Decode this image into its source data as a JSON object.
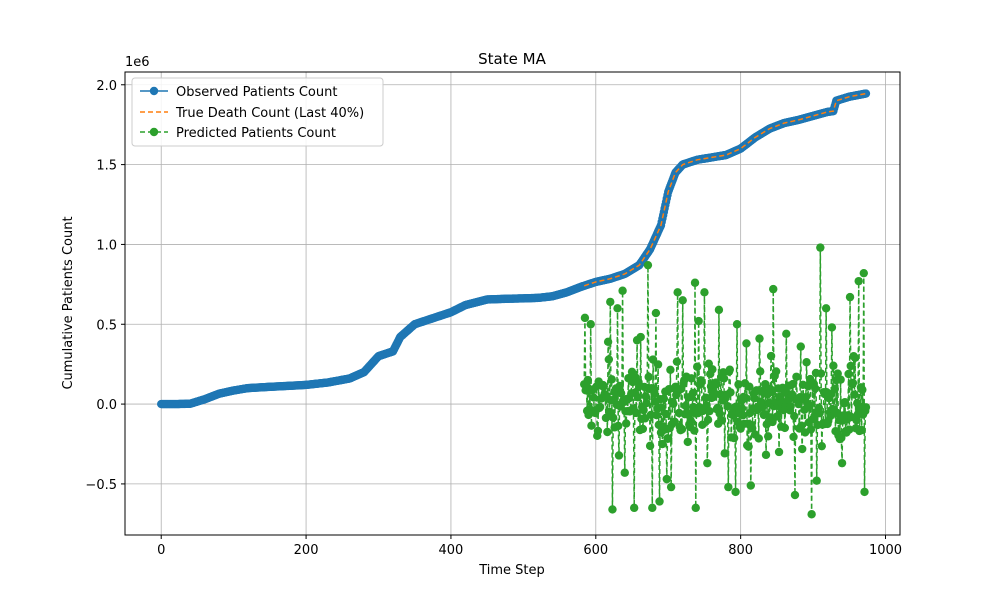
{
  "chart_data": {
    "type": "line",
    "title": "State MA",
    "xlabel": "Time Step",
    "ylabel": "Cumulative Patients Count",
    "y_scale_label": "1e6",
    "xlim": [
      -50,
      1020
    ],
    "ylim": [
      -0.82,
      2.08
    ],
    "x_ticks": [
      0,
      200,
      400,
      600,
      800,
      1000
    ],
    "x_tick_labels": [
      "0",
      "200",
      "400",
      "600",
      "800",
      "1000"
    ],
    "y_ticks": [
      -0.5,
      0.0,
      0.5,
      1.0,
      1.5,
      2.0
    ],
    "y_tick_labels": [
      "−0.5",
      "0.0",
      "0.5",
      "1.0",
      "1.5",
      "2.0"
    ],
    "grid": true,
    "legend_position": "top-left",
    "series": [
      {
        "name": "Observed Patients Count",
        "color": "#1f77b4",
        "style": "solid-marker",
        "x_start": 0,
        "x_end": 973,
        "x_step": 1,
        "curve": [
          [
            0,
            0.0
          ],
          [
            20,
            0.0
          ],
          [
            40,
            0.002
          ],
          [
            60,
            0.03
          ],
          [
            80,
            0.065
          ],
          [
            100,
            0.085
          ],
          [
            120,
            0.1
          ],
          [
            150,
            0.108
          ],
          [
            180,
            0.115
          ],
          [
            200,
            0.12
          ],
          [
            230,
            0.135
          ],
          [
            260,
            0.16
          ],
          [
            280,
            0.2
          ],
          [
            300,
            0.3
          ],
          [
            320,
            0.33
          ],
          [
            330,
            0.42
          ],
          [
            350,
            0.5
          ],
          [
            380,
            0.545
          ],
          [
            400,
            0.575
          ],
          [
            420,
            0.62
          ],
          [
            450,
            0.655
          ],
          [
            480,
            0.66
          ],
          [
            500,
            0.662
          ],
          [
            520,
            0.665
          ],
          [
            540,
            0.675
          ],
          [
            560,
            0.7
          ],
          [
            580,
            0.735
          ],
          [
            600,
            0.765
          ],
          [
            620,
            0.785
          ],
          [
            640,
            0.815
          ],
          [
            660,
            0.87
          ],
          [
            675,
            0.97
          ],
          [
            690,
            1.12
          ],
          [
            700,
            1.33
          ],
          [
            710,
            1.45
          ],
          [
            720,
            1.5
          ],
          [
            740,
            1.53
          ],
          [
            760,
            1.545
          ],
          [
            780,
            1.56
          ],
          [
            800,
            1.6
          ],
          [
            820,
            1.67
          ],
          [
            840,
            1.725
          ],
          [
            860,
            1.76
          ],
          [
            880,
            1.78
          ],
          [
            900,
            1.805
          ],
          [
            920,
            1.83
          ],
          [
            928,
            1.835
          ],
          [
            932,
            1.9
          ],
          [
            950,
            1.925
          ],
          [
            973,
            1.945
          ]
        ]
      },
      {
        "name": "True Death Count (Last 40%)",
        "color": "#ff7f0e",
        "style": "dashed",
        "x_start": 584,
        "x_end": 973
      },
      {
        "name": "Predicted Patients Count",
        "color": "#2ca02c",
        "style": "dashed-marker",
        "x_start": 584,
        "x_end": 973,
        "x_step": 1,
        "highlights": [
          [
            585,
            0.54
          ],
          [
            593,
            0.5
          ],
          [
            601,
            0.11
          ],
          [
            611,
            0.11
          ],
          [
            617,
            0.39
          ],
          [
            620,
            0.64
          ],
          [
            623,
            -0.66
          ],
          [
            630,
            0.6
          ],
          [
            637,
            0.71
          ],
          [
            640,
            -0.43
          ],
          [
            653,
            -0.65
          ],
          [
            657,
            0.4
          ],
          [
            662,
            0.42
          ],
          [
            672,
            0.87
          ],
          [
            678,
            -0.65
          ],
          [
            683,
            0.57
          ],
          [
            688,
            -0.61
          ],
          [
            698,
            -0.47
          ],
          [
            704,
            -0.52
          ],
          [
            713,
            0.7
          ],
          [
            720,
            0.65
          ],
          [
            737,
            0.76
          ],
          [
            738,
            -0.65
          ],
          [
            742,
            0.52
          ],
          [
            750,
            0.7
          ],
          [
            754,
            -0.37
          ],
          [
            770,
            0.59
          ],
          [
            783,
            -0.52
          ],
          [
            793,
            -0.55
          ],
          [
            795,
            0.5
          ],
          [
            808,
            0.38
          ],
          [
            814,
            -0.51
          ],
          [
            826,
            0.41
          ],
          [
            845,
            0.72
          ],
          [
            853,
            -0.3
          ],
          [
            863,
            0.44
          ],
          [
            875,
            -0.57
          ],
          [
            883,
            0.36
          ],
          [
            898,
            -0.69
          ],
          [
            905,
            -0.48
          ],
          [
            910,
            0.98
          ],
          [
            918,
            0.6
          ],
          [
            926,
            0.48
          ],
          [
            940,
            -0.37
          ],
          [
            951,
            0.67
          ],
          [
            958,
            0.29
          ],
          [
            963,
            0.77
          ],
          [
            970,
            0.82
          ],
          [
            971,
            -0.55
          ],
          [
            973,
            -0.02
          ]
        ]
      }
    ]
  }
}
